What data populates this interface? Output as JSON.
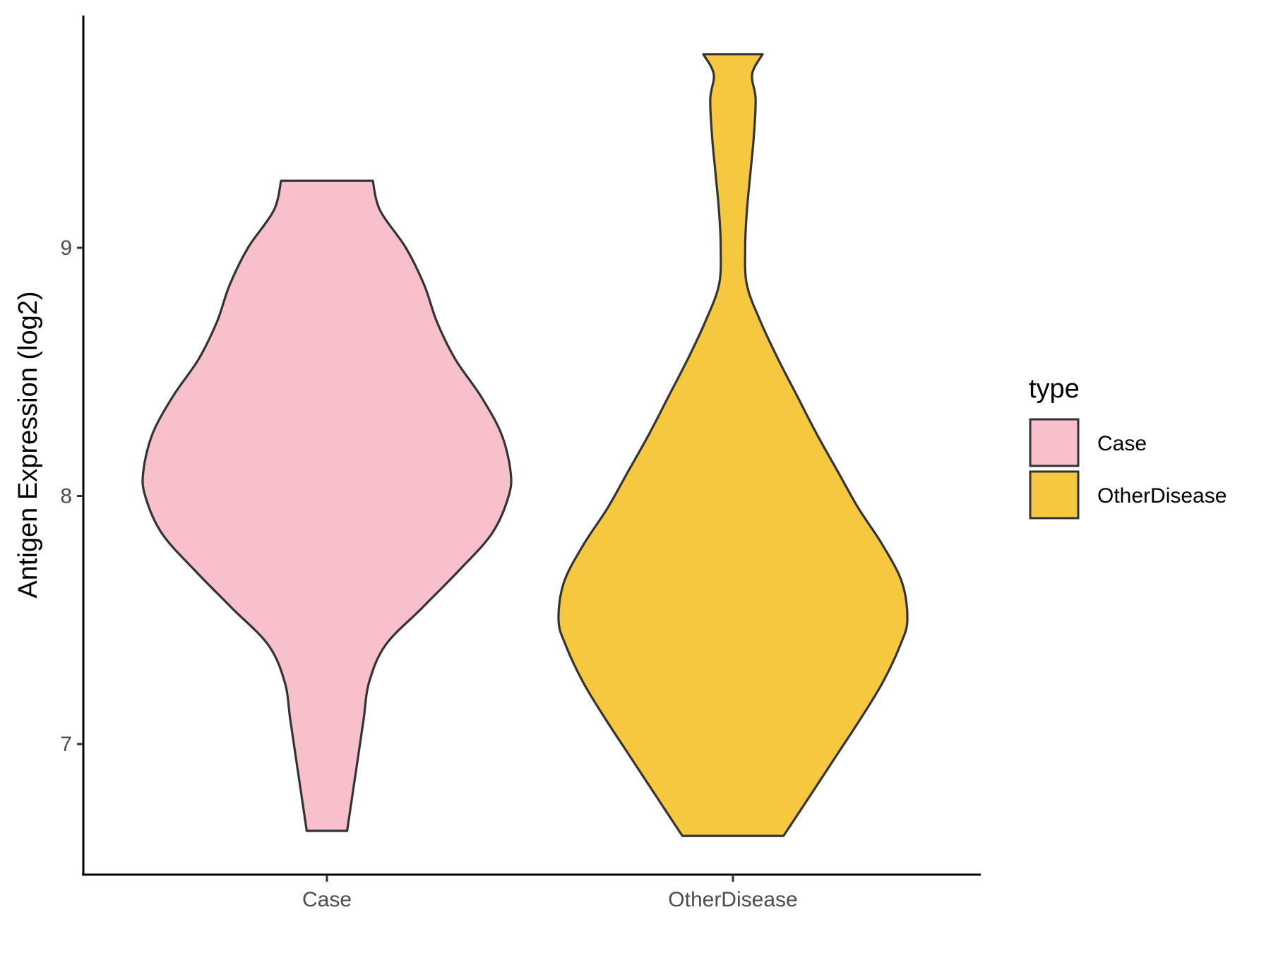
{
  "chart_data": {
    "type": "violin",
    "title": "",
    "xlabel": "",
    "ylabel": "Antigen Expression (log2)",
    "categories": [
      "Case",
      "OtherDisease"
    ],
    "yticks": [
      "7",
      "8",
      "9"
    ],
    "ylim": [
      6.48,
      9.95
    ],
    "grid": false,
    "legend": {
      "title": "type",
      "position": "right",
      "entries": [
        "Case",
        "OtherDisease"
      ]
    },
    "series": [
      {
        "category": "Case",
        "color": "#F7C0CB",
        "min": 6.65,
        "max": 9.27,
        "density_profile": [
          [
            6.65,
            0.11
          ],
          [
            6.8,
            0.14
          ],
          [
            6.95,
            0.17
          ],
          [
            7.1,
            0.2
          ],
          [
            7.25,
            0.23
          ],
          [
            7.4,
            0.32
          ],
          [
            7.55,
            0.52
          ],
          [
            7.7,
            0.72
          ],
          [
            7.85,
            0.9
          ],
          [
            8.0,
            0.99
          ],
          [
            8.1,
            1.0
          ],
          [
            8.25,
            0.95
          ],
          [
            8.4,
            0.84
          ],
          [
            8.55,
            0.7
          ],
          [
            8.7,
            0.6
          ],
          [
            8.85,
            0.53
          ],
          [
            9.0,
            0.43
          ],
          [
            9.15,
            0.29
          ],
          [
            9.27,
            0.25
          ]
        ]
      },
      {
        "category": "OtherDisease",
        "color": "#F5C83F",
        "min": 6.63,
        "max": 9.78,
        "density_profile": [
          [
            6.63,
            0.29
          ],
          [
            6.8,
            0.45
          ],
          [
            6.95,
            0.59
          ],
          [
            7.1,
            0.73
          ],
          [
            7.25,
            0.86
          ],
          [
            7.4,
            0.96
          ],
          [
            7.5,
            1.0
          ],
          [
            7.65,
            0.97
          ],
          [
            7.8,
            0.86
          ],
          [
            7.95,
            0.72
          ],
          [
            8.1,
            0.6
          ],
          [
            8.25,
            0.48
          ],
          [
            8.4,
            0.37
          ],
          [
            8.55,
            0.26
          ],
          [
            8.7,
            0.16
          ],
          [
            8.85,
            0.08
          ],
          [
            9.0,
            0.07
          ],
          [
            9.15,
            0.08
          ],
          [
            9.3,
            0.1
          ],
          [
            9.45,
            0.12
          ],
          [
            9.6,
            0.13
          ],
          [
            9.7,
            0.11
          ],
          [
            9.78,
            0.17
          ]
        ]
      }
    ]
  }
}
